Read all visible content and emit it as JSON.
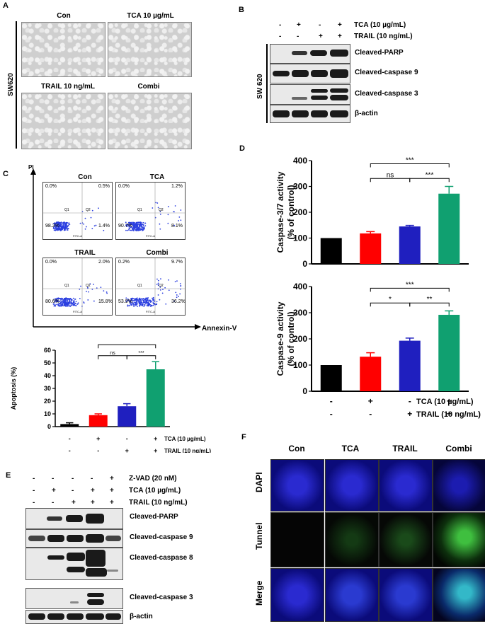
{
  "panelA": {
    "letter": "A",
    "cell_line": "SW620",
    "images": [
      "Con",
      "TCA 10 µg/mL",
      "TRAIL 10 ng/mL",
      "Combi"
    ]
  },
  "panelB": {
    "letter": "B",
    "cell_line": "SW 620",
    "tca_label": "TCA (10 µg/mL)",
    "trail_label": "TRAIL (10 ng/mL)",
    "tca_signs": [
      "-",
      "+",
      "-",
      "+"
    ],
    "trail_signs": [
      "-",
      "-",
      "+",
      "+"
    ],
    "proteins": [
      "Cleaved-PARP",
      "Cleaved-caspase 9",
      "Cleaved-caspase 3",
      "β-actin"
    ]
  },
  "panelC": {
    "letter": "C",
    "y_axis": "PI",
    "x_axis": "Annexin-V",
    "plots": [
      {
        "title": "Con",
        "ul": "0.0%",
        "ur": "0.5%",
        "ll": "98.2%",
        "lr": "1.4%"
      },
      {
        "title": "TCA",
        "ul": "0.0%",
        "ur": "1.2%",
        "ll": "90.7%",
        "lr": "8.1%"
      },
      {
        "title": "TRAIL",
        "ul": "0.0%",
        "ur": "2.0%",
        "ll": "80.6%",
        "lr": "15.8%"
      },
      {
        "title": "Combi",
        "ul": "0.2%",
        "ur": "9.7%",
        "ll": "53.9%",
        "lr": "36.2%"
      }
    ],
    "quadrants": [
      "Q1",
      "Q2"
    ],
    "facs_ylabel": "PI-A",
    "facs_xlabel": "FITC-A"
  },
  "panelD": {
    "letter": "D"
  },
  "panelE": {
    "letter": "E",
    "zvad_label": "Z-VAD (20 nM)",
    "tca_label": "TCA (10 µg/mL)",
    "trail_label": "TRAIL (10 ng/mL)",
    "zvad_signs": [
      "-",
      "-",
      "-",
      "-",
      "+"
    ],
    "tca_signs": [
      "-",
      "+",
      "-",
      "+",
      "+"
    ],
    "trail_signs": [
      "-",
      "-",
      "+",
      "+",
      "+"
    ],
    "proteins": [
      "Cleaved-PARP",
      "Cleaved-caspase 9",
      "Cleaved-caspase 8",
      "Cleaved-caspase 3",
      "β-actin"
    ]
  },
  "panelF": {
    "letter": "F",
    "columns": [
      "Con",
      "TCA",
      "TRAIL",
      "Combi"
    ],
    "rows": [
      "DAPI",
      "Tunnel",
      "Merge"
    ]
  },
  "chart_data": [
    {
      "type": "bar",
      "id": "apoptosis",
      "ylabel": "Apoptosis (%)",
      "ylim": [
        0,
        60
      ],
      "yticks": [
        0,
        10,
        20,
        30,
        40,
        50,
        60
      ],
      "categories": [
        "Con",
        "TCA",
        "TRAIL",
        "Combi"
      ],
      "values": [
        2,
        9,
        16,
        45
      ],
      "errors": [
        1,
        1,
        2,
        6
      ],
      "colors": [
        "#000000",
        "#ff0000",
        "#1f1fbf",
        "#10a070"
      ],
      "signs_tca": [
        "-",
        "+",
        "-",
        "+"
      ],
      "signs_trail": [
        "-",
        "-",
        "+",
        "+"
      ],
      "tca_label": "TCA (10 µg/mL)",
      "trail_label": "TRAIL (10 ng/mL)",
      "significance": [
        {
          "from": 1,
          "to": 3,
          "label": "***"
        },
        {
          "from": 1,
          "to": 2,
          "label": "ns"
        },
        {
          "from": 2,
          "to": 3,
          "label": "***"
        }
      ]
    },
    {
      "type": "bar",
      "id": "caspase37",
      "ylabel_lines": [
        "Caspase-3/7 activity",
        "(% of control)"
      ],
      "ylim": [
        0,
        400
      ],
      "yticks": [
        0,
        100,
        200,
        300,
        400
      ],
      "categories": [
        "Con",
        "TCA",
        "TRAIL",
        "Combi"
      ],
      "values": [
        100,
        118,
        145,
        272
      ],
      "errors": [
        0,
        7,
        4,
        28
      ],
      "colors": [
        "#000000",
        "#ff0000",
        "#1f1fbf",
        "#10a070"
      ],
      "significance": [
        {
          "from": 1,
          "to": 3,
          "label": "***"
        },
        {
          "from": 1,
          "to": 2,
          "label": "ns"
        },
        {
          "from": 2,
          "to": 3,
          "label": "***"
        }
      ]
    },
    {
      "type": "bar",
      "id": "caspase9",
      "ylabel_lines": [
        "Caspase-9 activity",
        "(% of control)"
      ],
      "ylim": [
        0,
        400
      ],
      "yticks": [
        0,
        100,
        200,
        300,
        400
      ],
      "categories": [
        "Con",
        "TCA",
        "TRAIL",
        "Combi"
      ],
      "values": [
        100,
        132,
        193,
        292
      ],
      "errors": [
        0,
        15,
        10,
        15
      ],
      "colors": [
        "#000000",
        "#ff0000",
        "#1f1fbf",
        "#10a070"
      ],
      "signs_tca": [
        "-",
        "+",
        "-",
        "+"
      ],
      "signs_trail": [
        "-",
        "-",
        "+",
        "+"
      ],
      "tca_label": "TCA (10 µg/mL)",
      "trail_label": "TRAIL (10 ng/mL)",
      "significance": [
        {
          "from": 1,
          "to": 3,
          "label": "***"
        },
        {
          "from": 1,
          "to": 2,
          "label": "*"
        },
        {
          "from": 2,
          "to": 3,
          "label": "**"
        }
      ]
    }
  ]
}
